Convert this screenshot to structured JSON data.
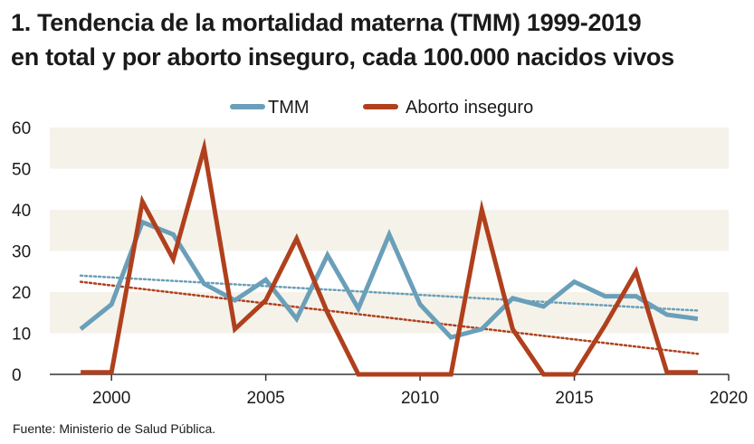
{
  "title_line1": "1. Tendencia de la mortalidad materna (TMM) 1999-2019",
  "title_line2": "en total y por aborto inseguro, cada 100.000 nacidos vivos",
  "source": "Fuente: Ministerio de Salud Pública.",
  "colors": {
    "tmm": "#6a9fb9",
    "aborto": "#b0401d",
    "band": "#f5f2ea",
    "axis": "#333333"
  },
  "chart_data": {
    "type": "line",
    "title": "Tendencia de la mortalidad materna (TMM) 1999-2019 en total y por aborto inseguro, cada 100.000 nacidos vivos",
    "xlabel": "",
    "ylabel": "",
    "xlim": [
      1998,
      2020
    ],
    "ylim": [
      0,
      60
    ],
    "x_ticks": [
      2000,
      2005,
      2010,
      2015,
      2020
    ],
    "y_ticks": [
      0,
      10,
      20,
      30,
      40,
      50,
      60
    ],
    "legend_position": "top-center",
    "x": [
      1999,
      2000,
      2001,
      2002,
      2003,
      2004,
      2005,
      2006,
      2007,
      2008,
      2009,
      2010,
      2011,
      2012,
      2013,
      2014,
      2015,
      2016,
      2017,
      2018,
      2019
    ],
    "series": [
      {
        "name": "TMM",
        "values": [
          11,
          17,
          37,
          34,
          22,
          18,
          23,
          13.5,
          29,
          16,
          34,
          17,
          9,
          11,
          18.5,
          16.5,
          22.5,
          19,
          19,
          14.5,
          13.5
        ],
        "trend": [
          24,
          15.5
        ]
      },
      {
        "name": "Aborto inseguro",
        "values": [
          0.5,
          0.5,
          42,
          28,
          55,
          11,
          18,
          33,
          15,
          0,
          0,
          0,
          0,
          40,
          11,
          0,
          0,
          12,
          25,
          0.5,
          0.5
        ],
        "trend": [
          22.5,
          5
        ]
      }
    ]
  }
}
